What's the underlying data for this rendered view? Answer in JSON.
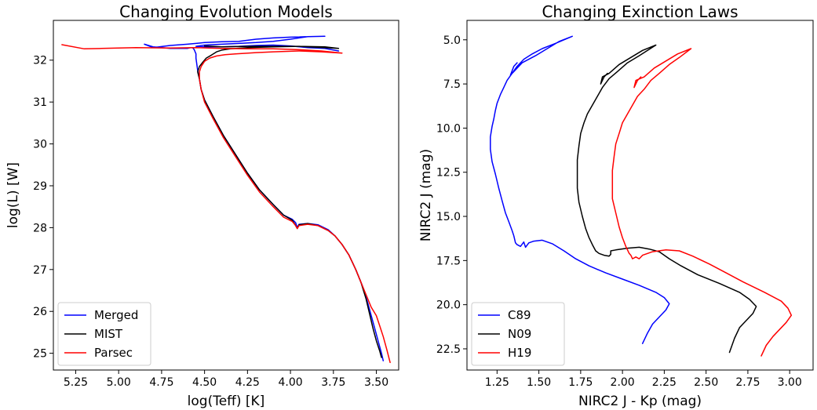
{
  "chart_data": [
    {
      "type": "line",
      "title": "Changing Evolution Models",
      "xlabel": "log(Teff) [K]",
      "ylabel": "log(L) [W]",
      "xlim": [
        5.38,
        3.37
      ],
      "ylim": [
        24.6,
        32.95
      ],
      "x_inverted": true,
      "xticks": [
        5.25,
        5.0,
        4.75,
        4.5,
        4.25,
        4.0,
        3.75,
        3.5
      ],
      "xtick_labels": [
        "5.25",
        "5.00",
        "4.75",
        "4.50",
        "4.25",
        "4.00",
        "3.75",
        "3.50"
      ],
      "yticks": [
        25,
        26,
        27,
        28,
        29,
        30,
        31,
        32
      ],
      "ytick_labels": [
        "25",
        "26",
        "27",
        "28",
        "29",
        "30",
        "31",
        "32"
      ],
      "legend": "lower-left",
      "grid": false,
      "series": [
        {
          "name": "Merged",
          "color": "#0000ff",
          "x": [
            3.46,
            3.47,
            3.49,
            3.51,
            3.53,
            3.55,
            3.58,
            3.62,
            3.66,
            3.7,
            3.74,
            3.78,
            3.84,
            3.9,
            3.95,
            3.96,
            3.97,
            3.99,
            4.04,
            4.1,
            4.18,
            4.25,
            4.32,
            4.39,
            4.45,
            4.5,
            4.52,
            4.53,
            4.54,
            4.545,
            4.55,
            4.55,
            4.56,
            4.57,
            4.58,
            4.6,
            4.7,
            4.8,
            4.85,
            4.8,
            4.7,
            4.6,
            4.55,
            4.5,
            4.4,
            4.3,
            4.2,
            4.1,
            4.0,
            3.9,
            3.8,
            3.9,
            4.0,
            4.1,
            4.2,
            4.3,
            4.4,
            4.5,
            4.55,
            4.5,
            4.4,
            4.3,
            4.2,
            4.1,
            4.0,
            3.9,
            3.8,
            3.72
          ],
          "y": [
            24.82,
            25.0,
            25.3,
            25.6,
            25.9,
            26.2,
            26.6,
            27.0,
            27.35,
            27.6,
            27.8,
            27.95,
            28.07,
            28.1,
            28.08,
            28.0,
            28.12,
            28.2,
            28.3,
            28.55,
            28.9,
            29.3,
            29.75,
            30.2,
            30.65,
            31.05,
            31.3,
            31.55,
            31.75,
            31.9,
            32.05,
            32.15,
            32.25,
            32.3,
            32.3,
            32.28,
            32.28,
            32.32,
            32.38,
            32.3,
            32.35,
            32.38,
            32.4,
            32.42,
            32.44,
            32.45,
            32.5,
            32.53,
            32.55,
            32.56,
            32.57,
            32.56,
            32.5,
            32.45,
            32.42,
            32.4,
            32.38,
            32.36,
            32.33,
            32.32,
            32.32,
            32.33,
            32.35,
            32.36,
            32.34,
            32.3,
            32.28,
            32.22
          ]
        },
        {
          "name": "MIST",
          "color": "#000000",
          "x": [
            3.47,
            3.48,
            3.5,
            3.52,
            3.54,
            3.56,
            3.59,
            3.62,
            3.66,
            3.7,
            3.74,
            3.78,
            3.84,
            3.9,
            3.95,
            3.96,
            3.97,
            3.99,
            4.04,
            4.1,
            4.18,
            4.25,
            4.32,
            4.39,
            4.45,
            4.5,
            4.52,
            4.53,
            4.54,
            4.53,
            4.51,
            4.49,
            4.46,
            4.43,
            4.4,
            4.35,
            4.25,
            4.1,
            3.95,
            3.8,
            3.72,
            3.8,
            3.95,
            4.1,
            4.25,
            4.4,
            4.5
          ],
          "y": [
            24.9,
            25.05,
            25.3,
            25.6,
            25.95,
            26.3,
            26.7,
            27.0,
            27.35,
            27.6,
            27.8,
            27.93,
            28.05,
            28.1,
            28.07,
            27.98,
            28.05,
            28.18,
            28.3,
            28.55,
            28.9,
            29.3,
            29.75,
            30.2,
            30.65,
            31.05,
            31.3,
            31.55,
            31.72,
            31.85,
            31.95,
            32.05,
            32.12,
            32.2,
            32.24,
            32.27,
            32.3,
            32.32,
            32.33,
            32.3,
            32.28,
            32.32,
            32.33,
            32.33,
            32.33,
            32.32,
            32.34
          ]
        },
        {
          "name": "Parsec",
          "color": "#ff0000",
          "x": [
            3.42,
            3.44,
            3.46,
            3.48,
            3.5,
            3.53,
            3.56,
            3.59,
            3.62,
            3.66,
            3.7,
            3.74,
            3.78,
            3.84,
            3.9,
            3.95,
            3.96,
            3.97,
            3.99,
            4.04,
            4.1,
            4.18,
            4.25,
            4.32,
            4.39,
            4.45,
            4.5,
            4.52,
            4.53,
            4.53,
            4.52,
            4.5,
            4.47,
            4.43,
            4.38,
            4.32,
            4.2,
            4.1,
            3.95,
            3.82,
            3.7,
            3.82,
            3.95,
            4.1,
            4.25,
            4.4,
            4.55,
            4.7,
            4.9,
            5.1,
            5.2,
            5.33
          ],
          "y": [
            24.78,
            25.1,
            25.4,
            25.65,
            25.9,
            26.1,
            26.4,
            26.7,
            27.0,
            27.35,
            27.6,
            27.8,
            27.93,
            28.05,
            28.08,
            28.05,
            27.98,
            28.05,
            28.15,
            28.25,
            28.5,
            28.85,
            29.25,
            29.7,
            30.15,
            30.6,
            31.0,
            31.3,
            31.55,
            31.72,
            31.85,
            31.97,
            32.05,
            32.1,
            32.13,
            32.15,
            32.18,
            32.2,
            32.22,
            32.2,
            32.17,
            32.22,
            32.25,
            32.27,
            32.27,
            32.28,
            32.3,
            32.29,
            32.3,
            32.28,
            32.27,
            32.37
          ]
        }
      ]
    },
    {
      "type": "line",
      "title": "Changing Exinction Laws",
      "xlabel": "NIRC2 J - Kp (mag)",
      "ylabel": "NIRC2 J (mag)",
      "xlim": [
        1.07,
        3.14
      ],
      "ylim": [
        23.7,
        3.9
      ],
      "y_inverted": true,
      "xticks": [
        1.25,
        1.5,
        1.75,
        2.0,
        2.25,
        2.5,
        2.75,
        3.0
      ],
      "xtick_labels": [
        "1.25",
        "1.50",
        "1.75",
        "2.00",
        "2.25",
        "2.50",
        "2.75",
        "3.00"
      ],
      "yticks": [
        5.0,
        7.5,
        10.0,
        12.5,
        15.0,
        17.5,
        20.0,
        22.5
      ],
      "ytick_labels": [
        "5.0",
        "7.5",
        "10.0",
        "12.5",
        "15.0",
        "17.5",
        "20.0",
        "22.5"
      ],
      "legend": "lower-left",
      "grid": false,
      "series": [
        {
          "name": "C89",
          "color": "#0000ff",
          "x": [
            2.12,
            2.15,
            2.18,
            2.22,
            2.26,
            2.28,
            2.25,
            2.2,
            2.1,
            2.0,
            1.9,
            1.8,
            1.72,
            1.65,
            1.58,
            1.52,
            1.47,
            1.44,
            1.42,
            1.41,
            1.39,
            1.37,
            1.36,
            1.35,
            1.34,
            1.32,
            1.3,
            1.28,
            1.26,
            1.24,
            1.22,
            1.21,
            1.21,
            1.22,
            1.23,
            1.24,
            1.25,
            1.27,
            1.29,
            1.31,
            1.34,
            1.37,
            1.41,
            1.46,
            1.52,
            1.6,
            1.7,
            1.62,
            1.55,
            1.48,
            1.4,
            1.35,
            1.33,
            1.35,
            1.37
          ],
          "y": [
            22.2,
            21.6,
            21.1,
            20.7,
            20.3,
            19.95,
            19.6,
            19.3,
            18.9,
            18.55,
            18.2,
            17.8,
            17.4,
            16.95,
            16.55,
            16.35,
            16.4,
            16.5,
            16.75,
            16.45,
            16.7,
            16.6,
            16.5,
            16.1,
            15.8,
            15.3,
            14.8,
            14.1,
            13.4,
            12.6,
            11.9,
            11.2,
            10.5,
            9.9,
            9.5,
            9.0,
            8.6,
            8.1,
            7.7,
            7.3,
            6.9,
            6.5,
            6.1,
            5.8,
            5.5,
            5.2,
            4.8,
            5.1,
            5.5,
            5.9,
            6.3,
            6.8,
            7.0,
            6.5,
            6.3
          ]
        },
        {
          "name": "N09",
          "color": "#000000",
          "x": [
            2.64,
            2.67,
            2.7,
            2.74,
            2.78,
            2.8,
            2.76,
            2.7,
            2.58,
            2.45,
            2.35,
            2.28,
            2.22,
            2.16,
            2.1,
            2.03,
            1.96,
            1.93,
            1.93,
            1.92,
            1.89,
            1.86,
            1.84,
            1.82,
            1.8,
            1.78,
            1.76,
            1.74,
            1.73,
            1.73,
            1.73,
            1.74,
            1.75,
            1.77,
            1.79,
            1.82,
            1.85,
            1.88,
            1.92,
            1.97,
            2.03,
            2.1,
            2.2,
            2.12,
            2.05,
            1.98,
            1.92,
            1.88,
            1.87,
            1.89,
            1.91
          ],
          "y": [
            22.7,
            21.9,
            21.3,
            20.9,
            20.5,
            20.1,
            19.7,
            19.3,
            18.8,
            18.3,
            17.8,
            17.4,
            17.0,
            16.85,
            16.75,
            16.8,
            16.9,
            16.95,
            17.15,
            17.25,
            17.2,
            17.1,
            16.95,
            16.6,
            16.2,
            15.7,
            15.0,
            14.2,
            13.4,
            12.6,
            11.8,
            11.0,
            10.3,
            9.7,
            9.2,
            8.7,
            8.2,
            7.7,
            7.2,
            6.8,
            6.3,
            5.9,
            5.3,
            5.6,
            6.0,
            6.4,
            6.9,
            7.1,
            7.5,
            7.1,
            6.9
          ]
        },
        {
          "name": "H19",
          "color": "#ff0000",
          "x": [
            2.83,
            2.86,
            2.9,
            2.94,
            2.98,
            3.01,
            2.99,
            2.95,
            2.85,
            2.72,
            2.62,
            2.52,
            2.42,
            2.34,
            2.26,
            2.18,
            2.12,
            2.1,
            2.08,
            2.06,
            2.05,
            2.04,
            2.02,
            2.0,
            1.98,
            1.96,
            1.94,
            1.94,
            1.94,
            1.95,
            1.96,
            1.98,
            2.0,
            2.03,
            2.06,
            2.09,
            2.13,
            2.17,
            2.22,
            2.28,
            2.34,
            2.41,
            2.33,
            2.26,
            2.19,
            2.13,
            2.08,
            2.07,
            2.09,
            2.11
          ],
          "y": [
            22.9,
            22.3,
            21.8,
            21.4,
            21.0,
            20.6,
            20.2,
            19.8,
            19.3,
            18.7,
            18.2,
            17.7,
            17.25,
            16.95,
            16.9,
            17.0,
            17.2,
            17.4,
            17.3,
            17.4,
            17.2,
            17.1,
            16.7,
            16.2,
            15.6,
            14.8,
            14.0,
            13.2,
            12.4,
            11.6,
            10.9,
            10.3,
            9.7,
            9.2,
            8.7,
            8.2,
            7.8,
            7.3,
            6.9,
            6.4,
            6.0,
            5.5,
            5.8,
            6.2,
            6.6,
            7.1,
            7.3,
            7.7,
            7.3,
            7.1
          ]
        }
      ]
    }
  ]
}
